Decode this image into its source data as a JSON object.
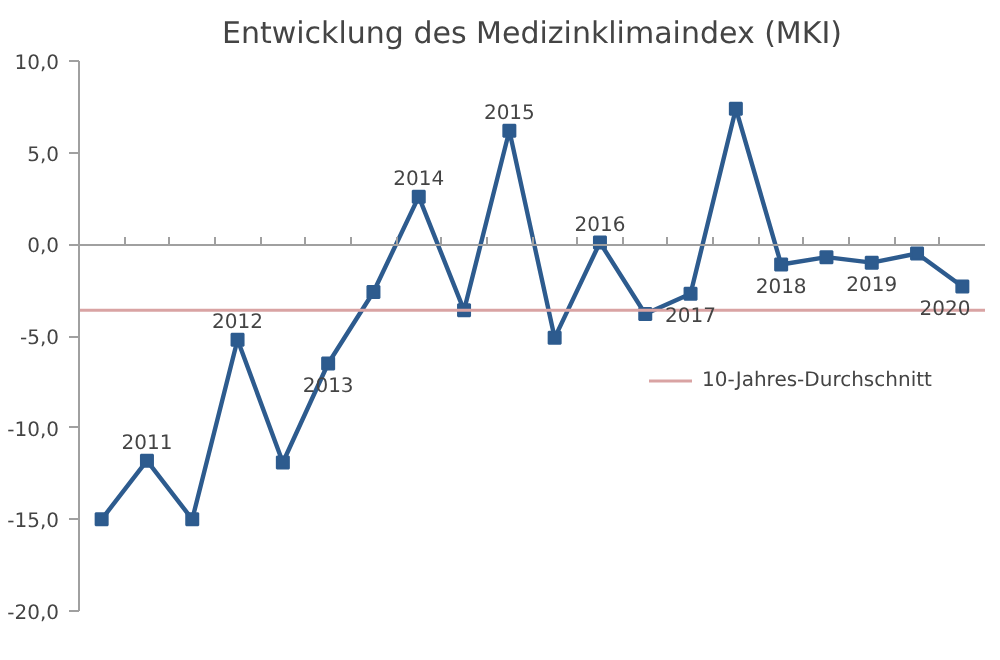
{
  "chart_data": {
    "type": "line",
    "title": "Entwicklung des Medizinklimaindex (MKI)",
    "categories": [
      null,
      null,
      null,
      null,
      null,
      null,
      null,
      null,
      null,
      null,
      null,
      null,
      null,
      null,
      null,
      null,
      null,
      null,
      null,
      null
    ],
    "series": [
      {
        "color": "#2d5b8e",
        "values": [
          -15.0,
          -11.8,
          -15.0,
          -5.2,
          -11.9,
          -6.5,
          -2.6,
          2.6,
          -3.6,
          6.2,
          -5.1,
          0.1,
          -3.8,
          -2.7,
          7.4,
          -1.1,
          -0.7,
          -1.0,
          -0.5,
          -2.3
        ]
      }
    ],
    "ylim": [
      -20,
      10
    ],
    "yticks": [
      {
        "value": -20,
        "label": "-20,0"
      },
      {
        "value": -15,
        "label": "-15,0"
      },
      {
        "value": -10,
        "label": "-10,0"
      },
      {
        "value": -5,
        "label": "-5,0"
      },
      {
        "value": 0,
        "label": "0,0"
      },
      {
        "value": 5,
        "label": "5,0"
      },
      {
        "value": 10,
        "label": "10,0"
      }
    ],
    "tick_labels": "y",
    "marker": "square",
    "line_style": "solid",
    "legend": "right",
    "ref_lines": [
      {
        "axis": "y",
        "value": -3.6,
        "label": "10-Jahres-Durchschnitt",
        "color": "#d9a3a3"
      }
    ],
    "annotations": [
      {
        "text": "2011",
        "y": -11.8
      },
      {
        "text": "2012",
        "y": -5.2
      },
      {
        "text": "2013",
        "y": -6.5
      },
      {
        "text": "2014",
        "y": 2.6
      },
      {
        "text": "2015",
        "y": 6.2
      },
      {
        "text": "2016",
        "y": 0.1
      },
      {
        "text": "2017",
        "y": -2.7
      },
      {
        "text": "2018",
        "y": -1.1
      },
      {
        "text": "2019",
        "y": -1.0
      },
      {
        "text": "2020",
        "y": -2.3
      }
    ]
  }
}
